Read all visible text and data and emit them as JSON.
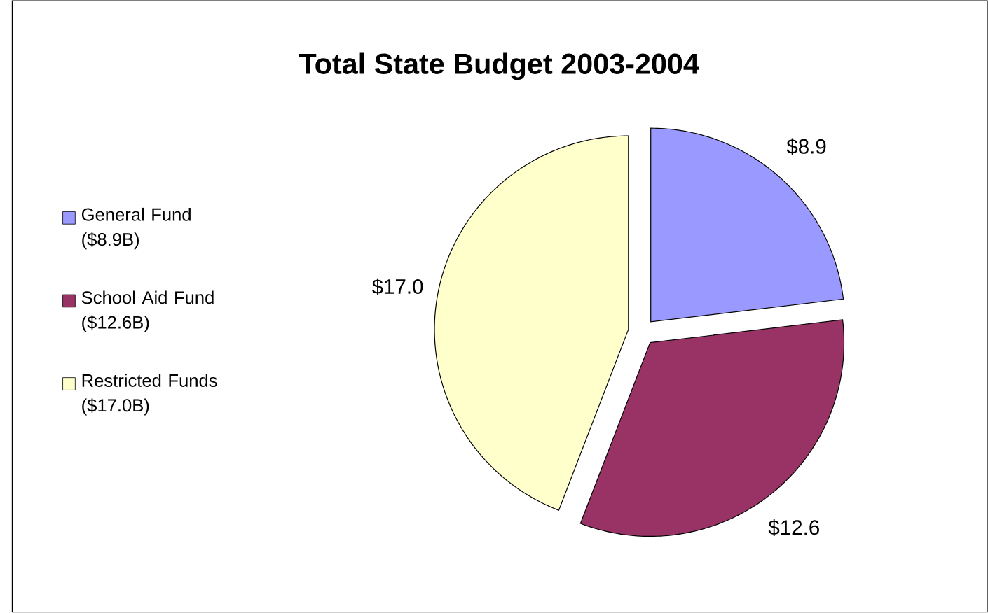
{
  "chart_data": {
    "type": "pie",
    "title": "Total State Budget 2003-2004",
    "categories": [
      "General Fund ($8.9B)",
      "School Aid Fund ($12.6B)",
      "Restricted Funds ($17.0B)"
    ],
    "values": [
      8.9,
      12.6,
      17.0
    ],
    "value_labels": [
      "$8.9",
      "$12.6",
      "$17.0"
    ],
    "colors": [
      "#9999ff",
      "#993366",
      "#ffffcc"
    ],
    "legend": "left"
  }
}
